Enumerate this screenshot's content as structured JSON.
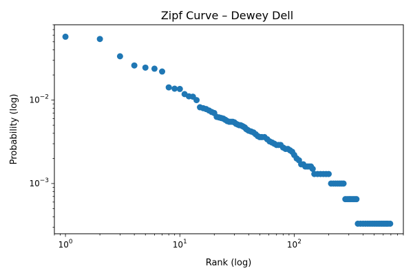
{
  "chart_data": {
    "type": "scatter",
    "title": "Zipf Curve – Dewey Dell",
    "xlabel": "Rank (log)",
    "ylabel": "Probability (log)",
    "xscale": "log",
    "yscale": "log",
    "xlim": [
      0.8,
      900
    ],
    "ylim": [
      0.00025,
      0.08
    ],
    "x_ticks": [
      {
        "value": 1,
        "base": "10",
        "exp": "0"
      },
      {
        "value": 10,
        "base": "10",
        "exp": "1"
      },
      {
        "value": 100,
        "base": "10",
        "exp": "2"
      }
    ],
    "y_ticks": [
      {
        "value": 0.001,
        "base": "10",
        "exp": "−3"
      },
      {
        "value": 0.01,
        "base": "10",
        "exp": "−2"
      }
    ],
    "grid": false,
    "legend": "none",
    "marker_color": "#1f77b4",
    "points": [
      [
        1,
        0.0575
      ],
      [
        2,
        0.054
      ],
      [
        3,
        0.0335
      ],
      [
        4,
        0.026
      ],
      [
        5,
        0.0245
      ],
      [
        6,
        0.0238
      ],
      [
        7,
        0.022
      ],
      [
        8,
        0.0142
      ],
      [
        9,
        0.0137
      ],
      [
        10,
        0.0136
      ],
      [
        11,
        0.0118
      ],
      [
        12,
        0.0111
      ],
      [
        13,
        0.011
      ],
      [
        14,
        0.01
      ],
      [
        15,
        0.0082
      ],
      [
        16,
        0.008
      ],
      [
        17,
        0.0078
      ],
      [
        18,
        0.0075
      ],
      [
        19,
        0.0072
      ],
      [
        20,
        0.007
      ],
      [
        21,
        0.0063
      ],
      [
        22,
        0.0062
      ],
      [
        23,
        0.0061
      ],
      [
        24,
        0.006
      ],
      [
        25,
        0.0058
      ],
      [
        26,
        0.0056
      ],
      [
        27,
        0.0055
      ],
      [
        28,
        0.0055
      ],
      [
        29,
        0.0055
      ],
      [
        30,
        0.0054
      ],
      [
        31,
        0.0052
      ],
      [
        32,
        0.0051
      ],
      [
        33,
        0.005
      ],
      [
        34,
        0.005
      ],
      [
        35,
        0.0049
      ],
      [
        36,
        0.0048
      ],
      [
        37,
        0.0047
      ],
      [
        38,
        0.0045
      ],
      [
        39,
        0.0044
      ],
      [
        40,
        0.0043
      ],
      [
        42,
        0.0042
      ],
      [
        44,
        0.0041
      ],
      [
        46,
        0.0039
      ],
      [
        48,
        0.0037
      ],
      [
        50,
        0.0036
      ],
      [
        52,
        0.0036
      ],
      [
        55,
        0.0036
      ],
      [
        58,
        0.0034
      ],
      [
        61,
        0.0032
      ],
      [
        64,
        0.0031
      ],
      [
        67,
        0.003
      ],
      [
        70,
        0.0029
      ],
      [
        73,
        0.0029
      ],
      [
        76,
        0.0029
      ],
      [
        80,
        0.0027
      ],
      [
        84,
        0.0026
      ],
      [
        88,
        0.0026
      ],
      [
        92,
        0.0025
      ],
      [
        96,
        0.0024
      ],
      [
        100,
        0.0022
      ],
      [
        105,
        0.002
      ],
      [
        110,
        0.0019
      ],
      [
        115,
        0.0017
      ],
      [
        120,
        0.0017
      ],
      [
        125,
        0.0016
      ],
      [
        130,
        0.0016
      ],
      [
        135,
        0.0016
      ],
      [
        140,
        0.0016
      ],
      [
        145,
        0.0015
      ],
      [
        150,
        0.0013
      ],
      [
        160,
        0.0013
      ],
      [
        170,
        0.0013
      ],
      [
        180,
        0.0013
      ],
      [
        190,
        0.0013
      ],
      [
        200,
        0.0013
      ],
      [
        210,
        0.001
      ],
      [
        220,
        0.001
      ],
      [
        230,
        0.001
      ],
      [
        240,
        0.001
      ],
      [
        250,
        0.001
      ],
      [
        260,
        0.001
      ],
      [
        270,
        0.001
      ],
      [
        280,
        0.00065
      ],
      [
        290,
        0.00065
      ],
      [
        300,
        0.00065
      ],
      [
        310,
        0.00065
      ],
      [
        320,
        0.00065
      ],
      [
        330,
        0.00065
      ],
      [
        340,
        0.00065
      ],
      [
        350,
        0.00065
      ],
      [
        360,
        0.00033
      ],
      [
        380,
        0.00033
      ],
      [
        400,
        0.00033
      ],
      [
        420,
        0.00033
      ],
      [
        440,
        0.00033
      ],
      [
        460,
        0.00033
      ],
      [
        480,
        0.00033
      ],
      [
        500,
        0.00033
      ],
      [
        520,
        0.00033
      ],
      [
        540,
        0.00033
      ],
      [
        560,
        0.00033
      ],
      [
        580,
        0.00033
      ],
      [
        600,
        0.00033
      ],
      [
        620,
        0.00033
      ],
      [
        640,
        0.00033
      ],
      [
        660,
        0.00033
      ],
      [
        690,
        0.00033
      ]
    ]
  }
}
